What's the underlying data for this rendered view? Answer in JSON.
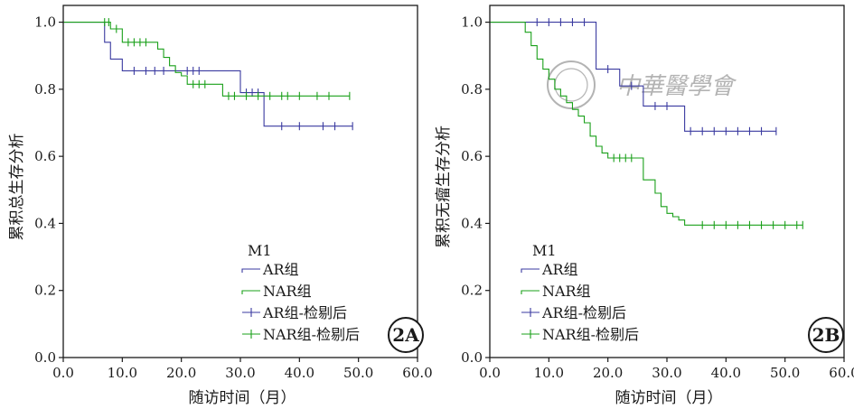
{
  "colors": {
    "ar": "#3a3aa0",
    "nar": "#1aa01a",
    "axis": "#1a1a1a",
    "watermark": "#9a9a9a"
  },
  "watermark": {
    "text": "中華醫學會"
  },
  "chart_data": [
    {
      "type": "line",
      "panel": "2A",
      "ylabel": "累积总生存分析",
      "xlabel": "随访时间（月）",
      "xlim": [
        0,
        60
      ],
      "ylim": [
        0,
        1.05
      ],
      "xticks": [
        "0.0",
        "10.0",
        "20.0",
        "30.0",
        "40.0",
        "50.0",
        "60.0"
      ],
      "yticks": [
        "0.0",
        "0.2",
        "0.4",
        "0.6",
        "0.8",
        "1.0"
      ],
      "legend": {
        "title": "M1",
        "entries": [
          "AR组",
          "NAR组",
          "AR组-检剔后",
          "NAR组-检剔后"
        ]
      },
      "series": [
        {
          "name": "AR组",
          "color": "#3a3aa0",
          "steps": [
            [
              0,
              1.0
            ],
            [
              7,
              0.94
            ],
            [
              8,
              0.89
            ],
            [
              10,
              0.855
            ],
            [
              30,
              0.79
            ],
            [
              34,
              0.69
            ],
            [
              49,
              0.69
            ]
          ],
          "censored": [
            [
              12,
              0.855
            ],
            [
              14,
              0.855
            ],
            [
              15.5,
              0.855
            ],
            [
              17,
              0.855
            ],
            [
              21,
              0.855
            ],
            [
              22,
              0.855
            ],
            [
              23,
              0.855
            ],
            [
              31,
              0.79
            ],
            [
              32,
              0.79
            ],
            [
              33,
              0.79
            ],
            [
              37,
              0.69
            ],
            [
              40,
              0.69
            ],
            [
              44,
              0.69
            ],
            [
              46,
              0.69
            ],
            [
              49,
              0.69
            ]
          ]
        },
        {
          "name": "NAR组",
          "color": "#1aa01a",
          "steps": [
            [
              0,
              1.0
            ],
            [
              8,
              0.98
            ],
            [
              10,
              0.94
            ],
            [
              16,
              0.92
            ],
            [
              17,
              0.895
            ],
            [
              18,
              0.87
            ],
            [
              19,
              0.85
            ],
            [
              20,
              0.84
            ],
            [
              21,
              0.815
            ],
            [
              27,
              0.78
            ],
            [
              48.5,
              0.78
            ]
          ],
          "censored": [
            [
              7,
              1.0
            ],
            [
              7.7,
              1.0
            ],
            [
              9,
              0.98
            ],
            [
              11,
              0.94
            ],
            [
              12,
              0.94
            ],
            [
              13,
              0.94
            ],
            [
              14,
              0.94
            ],
            [
              22,
              0.815
            ],
            [
              23,
              0.815
            ],
            [
              24,
              0.815
            ],
            [
              28,
              0.78
            ],
            [
              29,
              0.78
            ],
            [
              31,
              0.78
            ],
            [
              33,
              0.78
            ],
            [
              35,
              0.78
            ],
            [
              37,
              0.78
            ],
            [
              38,
              0.78
            ],
            [
              40,
              0.78
            ],
            [
              43,
              0.78
            ],
            [
              45,
              0.78
            ],
            [
              48.5,
              0.78
            ]
          ]
        }
      ]
    },
    {
      "type": "line",
      "panel": "2B",
      "ylabel": "累积无瘤生存分析",
      "xlabel": "随访时间（月）",
      "xlim": [
        0,
        60
      ],
      "ylim": [
        0,
        1.05
      ],
      "xticks": [
        "0.0",
        "10.0",
        "20.0",
        "30.0",
        "40.0",
        "50.0",
        "60.0"
      ],
      "yticks": [
        "0.0",
        "0.2",
        "0.4",
        "0.6",
        "0.8",
        "1.0"
      ],
      "legend": {
        "title": "M1",
        "entries": [
          "AR组",
          "NAR组",
          "AR组-检剔后",
          "NAR组-检剔后"
        ]
      },
      "series": [
        {
          "name": "AR组",
          "color": "#3a3aa0",
          "steps": [
            [
              0,
              1.0
            ],
            [
              18,
              0.86
            ],
            [
              22,
              0.81
            ],
            [
              26,
              0.75
            ],
            [
              33,
              0.675
            ],
            [
              48.5,
              0.675
            ]
          ],
          "censored": [
            [
              8,
              1.0
            ],
            [
              10,
              1.0
            ],
            [
              12,
              1.0
            ],
            [
              14,
              1.0
            ],
            [
              16,
              1.0
            ],
            [
              20,
              0.86
            ],
            [
              24,
              0.81
            ],
            [
              28,
              0.75
            ],
            [
              30,
              0.75
            ],
            [
              34,
              0.675
            ],
            [
              36,
              0.675
            ],
            [
              38,
              0.675
            ],
            [
              40,
              0.675
            ],
            [
              42,
              0.675
            ],
            [
              44,
              0.675
            ],
            [
              46,
              0.675
            ],
            [
              48.5,
              0.675
            ]
          ]
        },
        {
          "name": "NAR组",
          "color": "#1aa01a",
          "steps": [
            [
              0,
              1.0
            ],
            [
              6,
              0.97
            ],
            [
              7,
              0.93
            ],
            [
              8,
              0.89
            ],
            [
              9,
              0.86
            ],
            [
              10,
              0.83
            ],
            [
              11,
              0.8
            ],
            [
              12,
              0.78
            ],
            [
              13,
              0.76
            ],
            [
              14,
              0.74
            ],
            [
              15,
              0.72
            ],
            [
              16,
              0.7
            ],
            [
              17,
              0.66
            ],
            [
              18,
              0.63
            ],
            [
              19,
              0.61
            ],
            [
              20,
              0.595
            ],
            [
              26,
              0.53
            ],
            [
              28,
              0.49
            ],
            [
              29,
              0.45
            ],
            [
              30,
              0.43
            ],
            [
              31,
              0.42
            ],
            [
              32,
              0.41
            ],
            [
              33,
              0.395
            ],
            [
              53,
              0.395
            ]
          ],
          "censored": [
            [
              21,
              0.595
            ],
            [
              22,
              0.595
            ],
            [
              23,
              0.595
            ],
            [
              24,
              0.595
            ],
            [
              36,
              0.395
            ],
            [
              38,
              0.395
            ],
            [
              40,
              0.395
            ],
            [
              42,
              0.395
            ],
            [
              44,
              0.395
            ],
            [
              46,
              0.395
            ],
            [
              48,
              0.395
            ],
            [
              50,
              0.395
            ],
            [
              52,
              0.395
            ],
            [
              53,
              0.395
            ]
          ]
        }
      ]
    }
  ]
}
